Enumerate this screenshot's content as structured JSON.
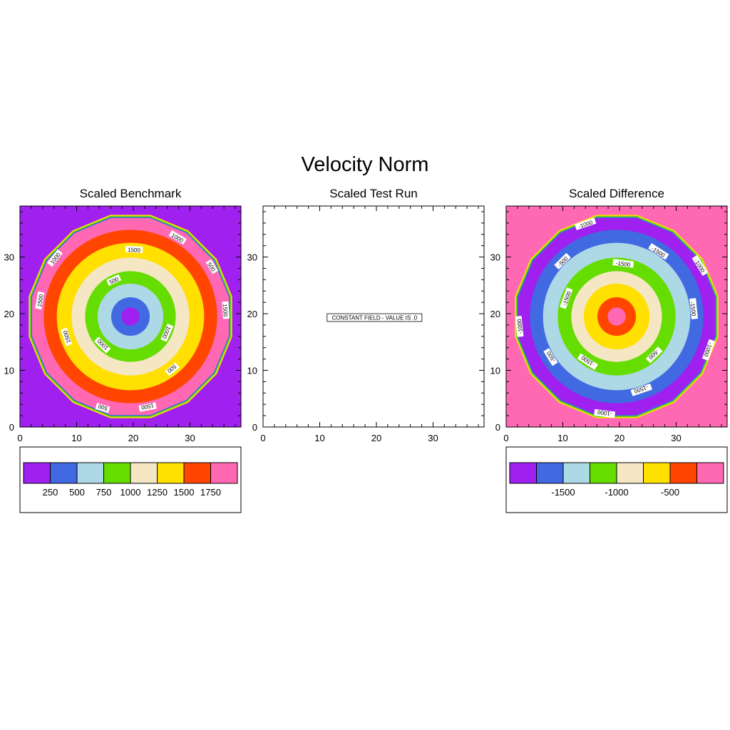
{
  "title": "Velocity Norm",
  "colors": [
    "#a020f0",
    "#4169e1",
    "#add8e6",
    "#66dd00",
    "#f5e6c4",
    "#ffe000",
    "#ff4500",
    "#ff69b4"
  ],
  "panels": [
    {
      "title": "Scaled Benchmark",
      "levels": [
        250,
        500,
        750,
        1000,
        1250,
        1500,
        1750
      ],
      "colorbar_labels": [
        "250",
        "500",
        "750",
        "1000",
        "1250",
        "1500",
        "1750"
      ],
      "contour_labels": [
        "500",
        "1000",
        "1500",
        "500",
        "1000",
        "1500",
        "1500",
        "1000",
        "500",
        "1500",
        "500",
        "1000",
        "1500"
      ]
    },
    {
      "title": "Scaled Test Run",
      "note": "CONSTANT FIELD - VALUE IS .0"
    },
    {
      "title": "Scaled Difference",
      "levels": [
        -1750,
        -1500,
        -1250,
        -1000,
        -750,
        -500,
        -250
      ],
      "colorbar_labels": [
        "-1500",
        "-1000",
        "-500"
      ],
      "contour_labels": [
        "-1000",
        "-1500",
        "-1500",
        "-1000",
        "-500",
        "-1500",
        "-1000",
        "-500",
        "-1500",
        "-1000",
        "-1500",
        "-500",
        "-1000",
        "-1500"
      ]
    }
  ],
  "chart_data": [
    {
      "type": "heatmap",
      "title": "Scaled Benchmark",
      "xlim": [
        0,
        39
      ],
      "ylim": [
        0,
        39
      ],
      "xticks": [
        0,
        10,
        20,
        30
      ],
      "yticks": [
        0,
        10,
        20,
        30
      ],
      "field": "radially symmetric, minimum at center (19.5, 19.5), increasing outward",
      "levels": [
        250,
        500,
        750,
        1000,
        1250,
        1500,
        1750
      ],
      "colorbar": [
        "250",
        "500",
        "750",
        "1000",
        "1250",
        "1500",
        "1750"
      ]
    },
    {
      "type": "heatmap",
      "title": "Scaled Test Run",
      "xlim": [
        0,
        39
      ],
      "ylim": [
        0,
        39
      ],
      "xticks": [
        0,
        10,
        20,
        30
      ],
      "yticks": [
        0,
        10,
        20,
        30
      ],
      "constant_value": 0
    },
    {
      "type": "heatmap",
      "title": "Scaled Difference",
      "xlim": [
        0,
        39
      ],
      "ylim": [
        0,
        39
      ],
      "xticks": [
        0,
        10,
        20,
        30
      ],
      "yticks": [
        0,
        10,
        20,
        30
      ],
      "field": "radially symmetric, maximum at center (19.5, 19.5), decreasing outward",
      "levels": [
        -1750,
        -1500,
        -1250,
        -1000,
        -750,
        -500,
        -250
      ],
      "colorbar": [
        "-1500",
        "-1000",
        "-500"
      ]
    }
  ]
}
